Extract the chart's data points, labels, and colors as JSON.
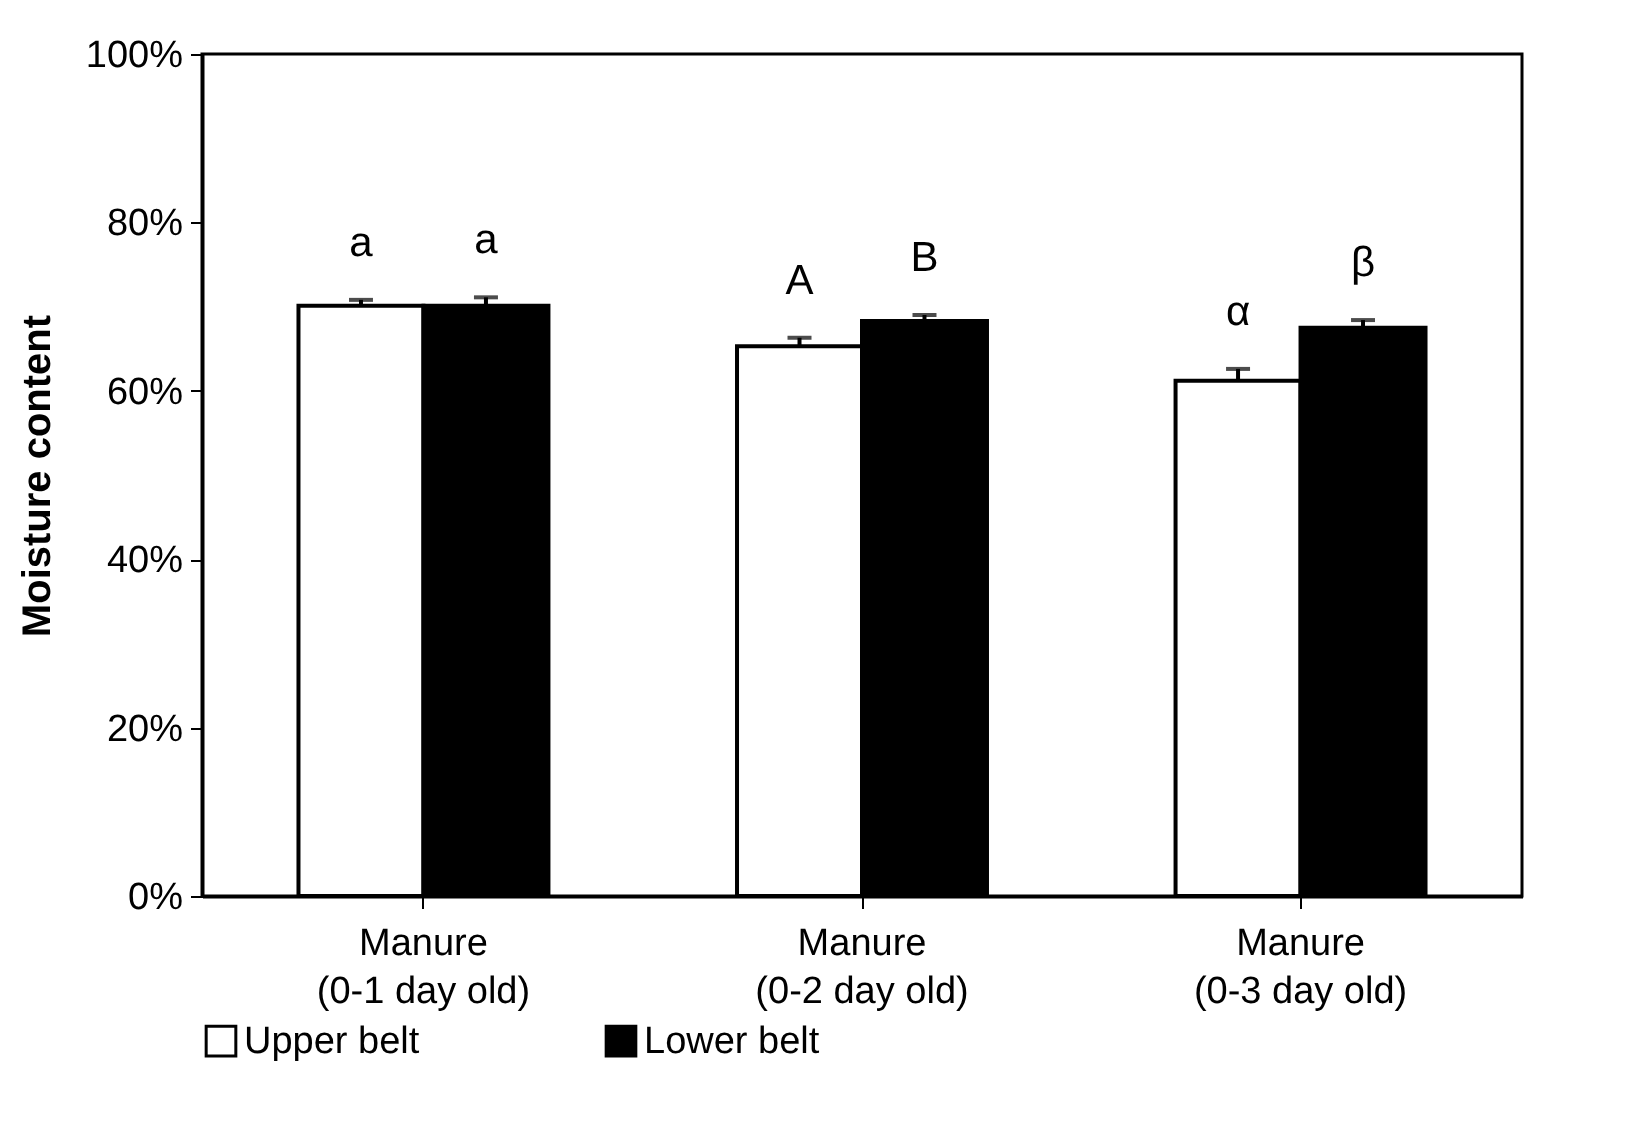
{
  "chart_data": {
    "type": "bar",
    "ylabel": "Moisture content",
    "categories": [
      "Manure\n(0-1 day old)",
      "Manure\n(0-2 day old)",
      "Manure\n(0-3 day old)"
    ],
    "series": [
      {
        "name": "Upper belt",
        "color": "#ffffff",
        "values": [
          70.1,
          65.3,
          61.2
        ],
        "errors": [
          0.7,
          1.0,
          1.4
        ]
      },
      {
        "name": "Lower belt",
        "color": "#000000",
        "values": [
          70.1,
          68.3,
          67.5
        ],
        "errors": [
          1.0,
          0.7,
          0.9
        ]
      }
    ],
    "ylim": [
      0,
      100
    ],
    "yticks": [
      {
        "value": 0,
        "label": "0%"
      },
      {
        "value": 20,
        "label": "20%"
      },
      {
        "value": 40,
        "label": "40%"
      },
      {
        "value": 60,
        "label": "60%"
      },
      {
        "value": 80,
        "label": "80%"
      },
      {
        "value": 100,
        "label": "100%"
      }
    ],
    "annotations": [
      "a",
      "a",
      "A",
      "B",
      "α",
      "β"
    ],
    "legend": "bottom",
    "grid": false
  }
}
